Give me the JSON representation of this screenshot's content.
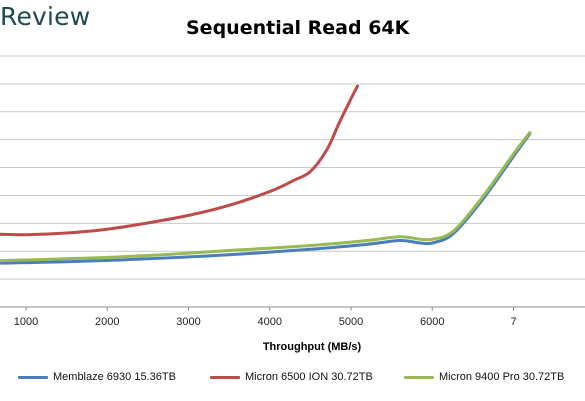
{
  "brand": "Review",
  "chart_data": {
    "type": "line",
    "title": "Sequential Read 64K",
    "xlabel": "Throughput (MB/s)",
    "ylabel": "",
    "xlim": [
      680,
      7880
    ],
    "ylim": [
      0,
      10
    ],
    "x_ticks": [
      "1000",
      "2000",
      "3000",
      "4000",
      "5000",
      "6000",
      "7"
    ],
    "grid": true,
    "legend_position": "bottom",
    "series": [
      {
        "name": "Memblaze 6930 15.36TB",
        "color": "#4a7ebb",
        "points": [
          [
            680,
            1.75
          ],
          [
            1500,
            1.8
          ],
          [
            2500,
            1.92
          ],
          [
            3500,
            2.08
          ],
          [
            4500,
            2.3
          ],
          [
            5200,
            2.5
          ],
          [
            5600,
            2.65
          ],
          [
            5850,
            2.55
          ],
          [
            6000,
            2.55
          ],
          [
            6250,
            2.9
          ],
          [
            6600,
            4.2
          ],
          [
            7000,
            6.0
          ],
          [
            7200,
            6.9
          ]
        ]
      },
      {
        "name": "Micron 6500 ION 30.72TB",
        "color": "#be4b48",
        "points": [
          [
            680,
            2.9
          ],
          [
            1000,
            2.88
          ],
          [
            1500,
            2.95
          ],
          [
            2000,
            3.1
          ],
          [
            2500,
            3.35
          ],
          [
            3000,
            3.65
          ],
          [
            3500,
            4.05
          ],
          [
            4000,
            4.6
          ],
          [
            4300,
            5.05
          ],
          [
            4500,
            5.4
          ],
          [
            4700,
            6.25
          ],
          [
            4850,
            7.3
          ],
          [
            5000,
            8.3
          ],
          [
            5080,
            8.8
          ]
        ]
      },
      {
        "name": "Micron 9400 Pro 30.72TB",
        "color": "#98b954",
        "points": [
          [
            680,
            1.85
          ],
          [
            1500,
            1.92
          ],
          [
            2500,
            2.05
          ],
          [
            3500,
            2.25
          ],
          [
            4500,
            2.45
          ],
          [
            5200,
            2.65
          ],
          [
            5600,
            2.8
          ],
          [
            5850,
            2.7
          ],
          [
            6000,
            2.7
          ],
          [
            6250,
            3.0
          ],
          [
            6600,
            4.3
          ],
          [
            7000,
            6.1
          ],
          [
            7200,
            6.95
          ]
        ]
      }
    ]
  }
}
